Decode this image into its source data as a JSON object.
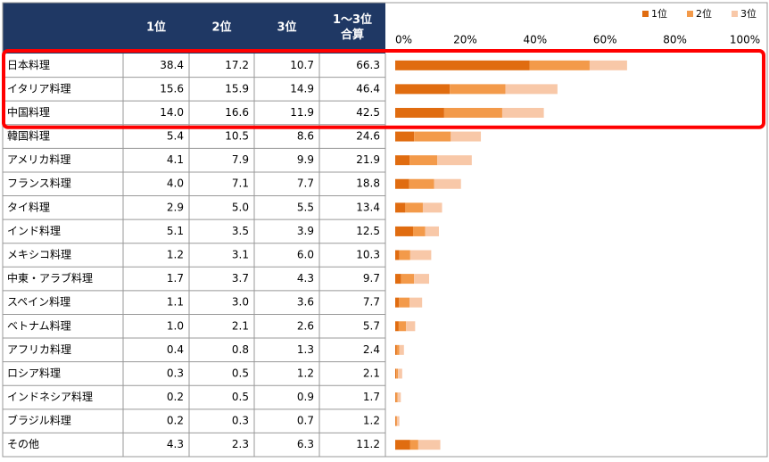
{
  "chart_data": {
    "type": "bar",
    "stacked": true,
    "orientation": "horizontal",
    "categories": [
      "日本料理",
      "イタリア料理",
      "中国料理",
      "韓国料理",
      "アメリカ料理",
      "フランス料理",
      "タイ料理",
      "インド料理",
      "メキシコ料理",
      "中東・アラブ料理",
      "スペイン料理",
      "ベトナム料理",
      "アフリカ料理",
      "ロシア料理",
      "インドネシア料理",
      "ブラジル料理",
      "その他"
    ],
    "series": [
      {
        "name": "1位",
        "color": "#e06c10",
        "values": [
          38.4,
          15.6,
          14.0,
          5.4,
          4.1,
          4.0,
          2.9,
          5.1,
          1.2,
          1.7,
          1.1,
          1.0,
          0.4,
          0.3,
          0.2,
          0.2,
          4.3
        ],
        "value_labels": [
          "38.4",
          "15.6",
          "14.0",
          "5.4",
          "4.1",
          "4.0",
          "2.9",
          "5.1",
          "1.2",
          "1.7",
          "1.1",
          "1.0",
          "0.4",
          "0.3",
          "0.2",
          "0.2",
          "4.3"
        ]
      },
      {
        "name": "2位",
        "color": "#f39a4a",
        "values": [
          17.2,
          15.9,
          16.6,
          10.5,
          7.9,
          7.1,
          5.0,
          3.5,
          3.1,
          3.7,
          3.0,
          2.1,
          0.8,
          0.5,
          0.5,
          0.3,
          2.3
        ],
        "value_labels": [
          "17.2",
          "15.9",
          "16.6",
          "10.5",
          "7.9",
          "7.1",
          "5.0",
          "3.5",
          "3.1",
          "3.7",
          "3.0",
          "2.1",
          "0.8",
          "0.5",
          "0.5",
          "0.3",
          "2.3"
        ]
      },
      {
        "name": "3位",
        "color": "#f8c8a8",
        "values": [
          10.7,
          14.9,
          11.9,
          8.6,
          9.9,
          7.7,
          5.5,
          3.9,
          6.0,
          4.3,
          3.6,
          2.6,
          1.3,
          1.2,
          0.9,
          0.7,
          6.3
        ],
        "value_labels": [
          "10.7",
          "14.9",
          "11.9",
          "8.6",
          "9.9",
          "7.7",
          "5.5",
          "3.9",
          "6.0",
          "4.3",
          "3.6",
          "2.6",
          "1.3",
          "1.2",
          "0.9",
          "0.7",
          "6.3"
        ]
      }
    ],
    "total": {
      "name": [
        "1～3位",
        "合算"
      ],
      "values": [
        66.3,
        46.4,
        42.5,
        24.6,
        21.9,
        18.8,
        13.4,
        12.5,
        10.3,
        9.7,
        7.7,
        5.7,
        2.4,
        2.1,
        1.7,
        1.2,
        11.2
      ]
    },
    "xlim": [
      0,
      100
    ],
    "xticks": [
      {
        "value": 0,
        "label": "0%"
      },
      {
        "value": 20,
        "label": "20%"
      },
      {
        "value": 40,
        "label": "40%"
      },
      {
        "value": 60,
        "label": "60%"
      },
      {
        "value": 80,
        "label": "80%"
      },
      {
        "value": 100,
        "label": "100%"
      }
    ],
    "legend": "top-right",
    "highlight_rows": [
      0,
      1,
      2
    ]
  }
}
